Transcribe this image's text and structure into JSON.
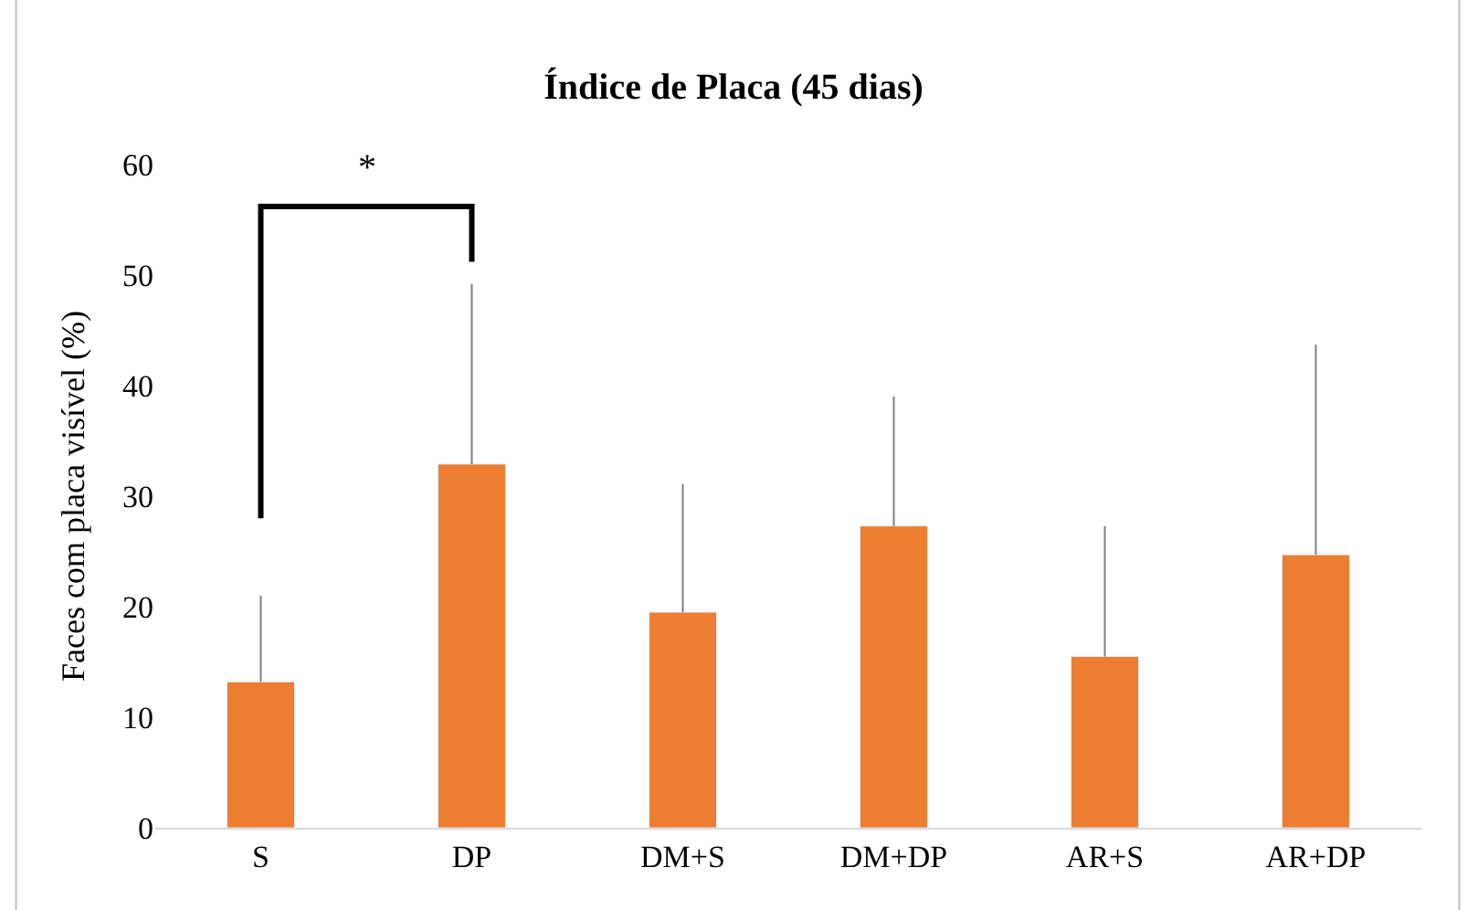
{
  "chart_data": {
    "type": "bar",
    "title": "Índice de Placa (45 dias)",
    "ylabel": "Faces com placa visível (%)",
    "categories": [
      "S",
      "DP",
      "DM+S",
      "DM+DP",
      "AR+S",
      "AR+DP"
    ],
    "values": [
      13.2,
      32.9,
      19.5,
      27.3,
      15.5,
      24.7
    ],
    "errors": [
      [
        13.2,
        21.0
      ],
      [
        32.9,
        49.2
      ],
      [
        19.5,
        31.1
      ],
      [
        27.3,
        39.0
      ],
      [
        15.5,
        27.3
      ],
      [
        24.7,
        43.7
      ]
    ],
    "color": "#ed7d31",
    "ylim": [
      0,
      60
    ],
    "yticks": [
      0,
      10,
      20,
      30,
      40,
      50,
      60
    ],
    "grid": false,
    "legend": false,
    "annotations": [
      "*"
    ]
  }
}
